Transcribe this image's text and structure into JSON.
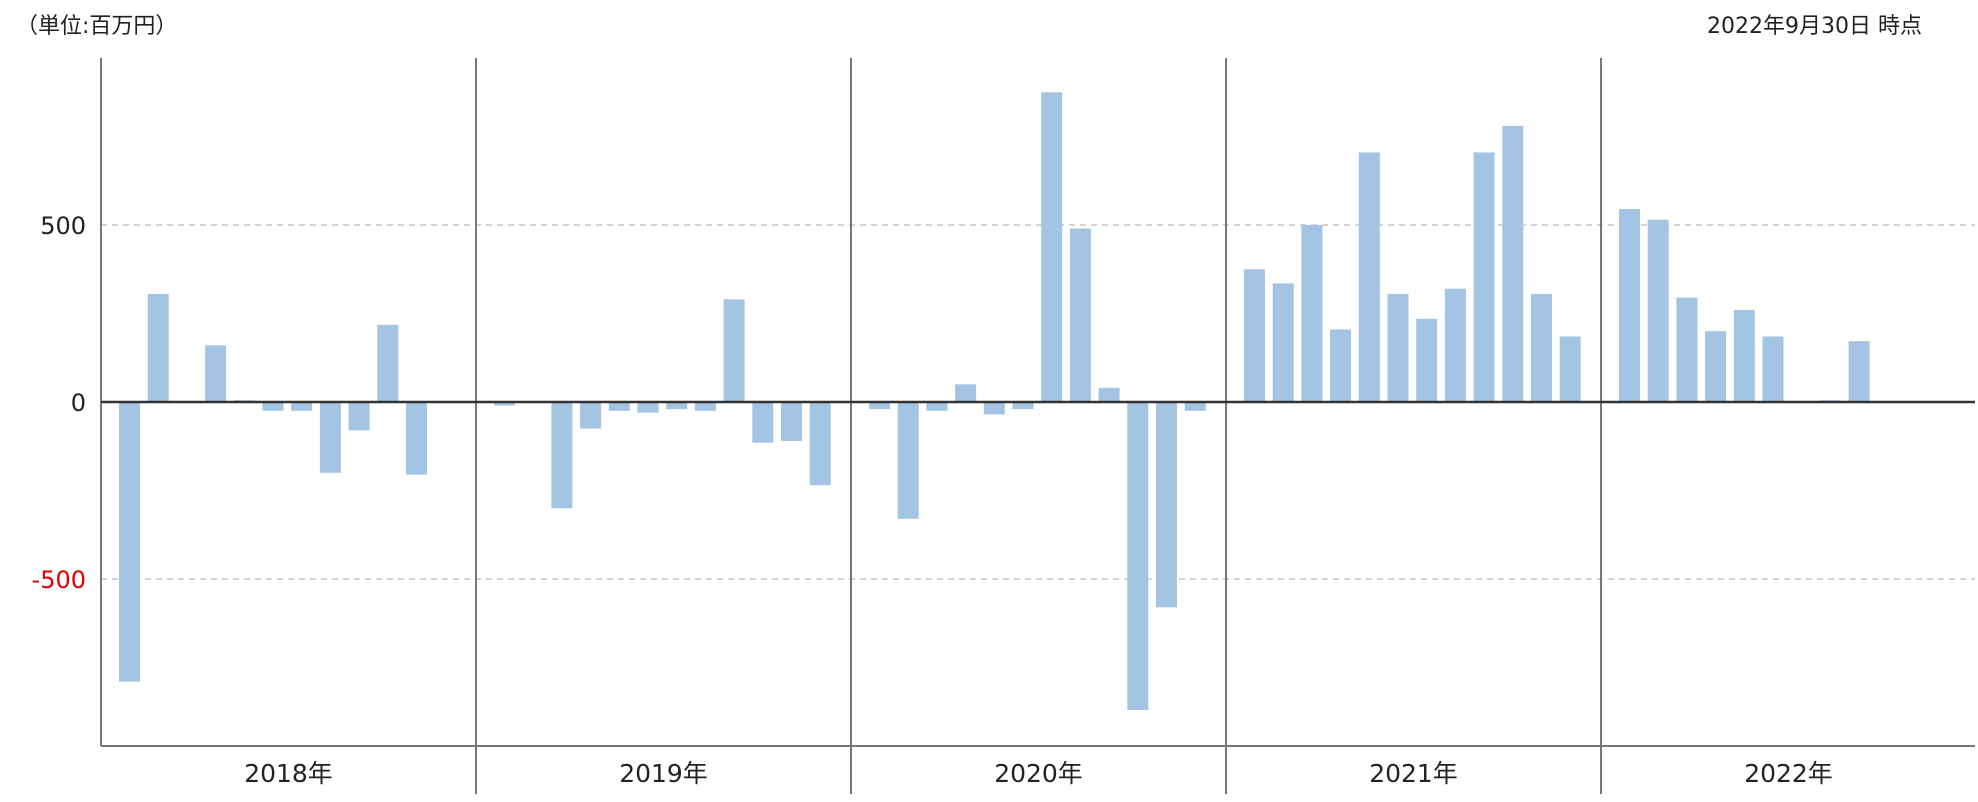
{
  "header": {
    "unit_label": "（単位:百万円）",
    "as_of_label": "2022年9月30日 時点"
  },
  "colors": {
    "bar": "#a3c4e3",
    "axis": "#333333",
    "divider": "#777777",
    "grid": "#bbbbbb",
    "negative_tick": "#e00000",
    "text": "#222222"
  },
  "chart_data": {
    "type": "bar",
    "title": "",
    "xlabel": "",
    "ylabel": "",
    "ylim": [
      -960,
      960
    ],
    "grid": "dashed horizontal at ±500",
    "yticks": [
      {
        "label": "500",
        "value": 500,
        "negative": false
      },
      {
        "label": "0",
        "value": 0,
        "negative": false
      },
      {
        "label": "-500",
        "value": -500,
        "negative": true
      }
    ],
    "groups": [
      {
        "label": "2018年",
        "values": [
          -790,
          305,
          0,
          160,
          5,
          -25,
          -25,
          -200,
          -80,
          218,
          -205,
          0
        ]
      },
      {
        "label": "2019年",
        "values": [
          -10,
          0,
          -300,
          -75,
          -25,
          -30,
          -20,
          -25,
          290,
          -115,
          -110,
          -235
        ]
      },
      {
        "label": "2020年",
        "values": [
          -20,
          -330,
          -25,
          50,
          -35,
          -20,
          875,
          490,
          40,
          -870,
          -580,
          -25
        ]
      },
      {
        "label": "2021年",
        "values": [
          375,
          335,
          500,
          205,
          705,
          305,
          235,
          320,
          705,
          780,
          305,
          185
        ]
      },
      {
        "label": "2022年",
        "values": [
          545,
          515,
          295,
          200,
          260,
          185,
          0,
          5,
          172
        ]
      }
    ]
  }
}
